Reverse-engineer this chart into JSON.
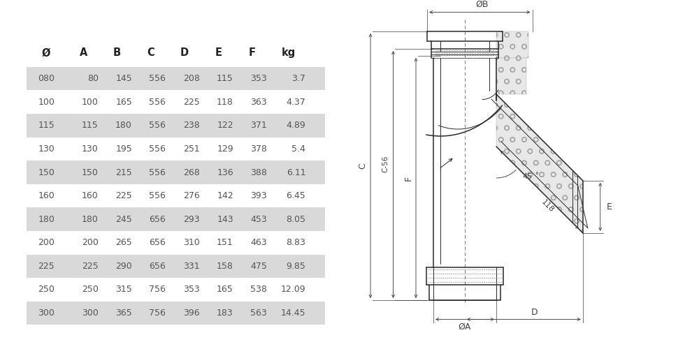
{
  "table": {
    "headers": [
      "Ø",
      "A",
      "B",
      "C",
      "D",
      "E",
      "F",
      "kg"
    ],
    "rows": [
      [
        "080",
        "80",
        "145",
        "556",
        "208",
        "115",
        "353",
        "3.7"
      ],
      [
        "100",
        "100",
        "165",
        "556",
        "225",
        "118",
        "363",
        "4.37"
      ],
      [
        "115",
        "115",
        "180",
        "556",
        "238",
        "122",
        "371",
        "4.89"
      ],
      [
        "130",
        "130",
        "195",
        "556",
        "251",
        "129",
        "378",
        "5.4"
      ],
      [
        "150",
        "150",
        "215",
        "556",
        "268",
        "136",
        "388",
        "6.11"
      ],
      [
        "160",
        "160",
        "225",
        "556",
        "276",
        "142",
        "393",
        "6.45"
      ],
      [
        "180",
        "180",
        "245",
        "656",
        "293",
        "143",
        "453",
        "8.05"
      ],
      [
        "200",
        "200",
        "265",
        "656",
        "310",
        "151",
        "463",
        "8.83"
      ],
      [
        "225",
        "225",
        "290",
        "656",
        "331",
        "158",
        "475",
        "9.85"
      ],
      [
        "250",
        "250",
        "315",
        "756",
        "353",
        "165",
        "538",
        "12.09"
      ],
      [
        "300",
        "300",
        "365",
        "756",
        "396",
        "183",
        "563",
        "14.45"
      ]
    ],
    "shaded_rows": [
      0,
      2,
      4,
      6,
      8,
      10
    ],
    "row_bg_shaded": "#d9d9d9",
    "row_bg_white": "#ffffff",
    "text_color": "#555555",
    "header_text_color": "#222222"
  },
  "diagram": {
    "line_color": "#2a2a2a",
    "dim_color": "#444444",
    "hatch_fc": "#e8e8e8"
  },
  "fig_width": 10.0,
  "fig_height": 5.0,
  "dpi": 100,
  "bg_color": "#ffffff"
}
